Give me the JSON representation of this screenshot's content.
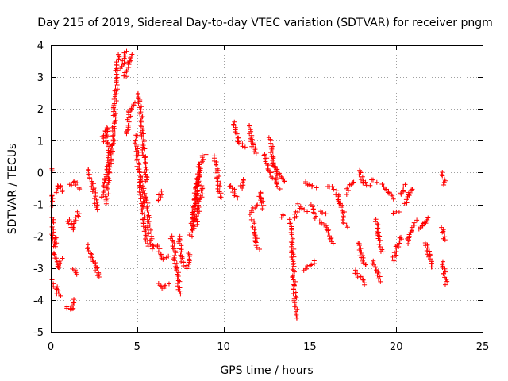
{
  "chart_data": {
    "type": "scatter",
    "title": "Day 215 of 2019, Sidereal Day-to-day VTEC variation (SDTVAR) for receiver pngm",
    "xlabel": "GPS time / hours",
    "ylabel": "SDTVAR / TECUs",
    "xlim": [
      0,
      25
    ],
    "ylim": [
      -5,
      4
    ],
    "xticks": [
      0,
      5,
      10,
      15,
      20,
      25
    ],
    "yticks": [
      -5,
      -4,
      -3,
      -2,
      -1,
      0,
      1,
      2,
      3,
      4
    ],
    "grid": true,
    "marker": "+",
    "color": "#ff0000",
    "series": [
      {
        "name": "SDTVAR",
        "tracks": [
          [
            [
              0.0,
              -0.1
            ],
            [
              0.15,
              0.15
            ]
          ],
          [
            [
              0.0,
              -0.4
            ],
            [
              0.1,
              -1.5
            ],
            [
              0.2,
              -2.3
            ],
            [
              0.3,
              -2.0
            ]
          ],
          [
            [
              0.0,
              -3.4
            ],
            [
              0.3,
              -3.6
            ],
            [
              0.5,
              -3.9
            ]
          ],
          [
            [
              0.2,
              -2.5
            ],
            [
              0.4,
              -3.0
            ],
            [
              0.6,
              -2.7
            ]
          ],
          [
            [
              0.3,
              -0.6
            ],
            [
              0.5,
              -0.4
            ],
            [
              0.7,
              -0.6
            ]
          ],
          [
            [
              0.9,
              -4.2
            ],
            [
              1.2,
              -4.3
            ],
            [
              1.4,
              -4.0
            ]
          ],
          [
            [
              1.0,
              -1.5
            ],
            [
              1.3,
              -1.8
            ],
            [
              1.6,
              -1.2
            ]
          ],
          [
            [
              1.1,
              -0.4
            ],
            [
              1.4,
              -0.3
            ],
            [
              1.6,
              -0.5
            ]
          ],
          [
            [
              1.3,
              -3.0
            ],
            [
              1.5,
              -3.2
            ]
          ],
          [
            [
              2.1,
              -2.3
            ],
            [
              2.5,
              -2.8
            ],
            [
              2.8,
              -3.3
            ]
          ],
          [
            [
              2.2,
              0.1
            ],
            [
              2.5,
              -0.6
            ],
            [
              2.7,
              -1.2
            ]
          ],
          [
            [
              3.0,
              -0.8
            ],
            [
              3.2,
              -0.2
            ],
            [
              3.4,
              0.6
            ]
          ],
          [
            [
              3.0,
              1.0
            ],
            [
              3.2,
              1.4
            ],
            [
              3.4,
              0.6
            ]
          ],
          [
            [
              3.2,
              -1.0
            ],
            [
              3.4,
              0.2
            ],
            [
              3.6,
              1.0
            ],
            [
              3.7,
              2.0
            ],
            [
              3.8,
              3.0
            ],
            [
              3.9,
              3.7
            ]
          ],
          [
            [
              4.1,
              3.3
            ],
            [
              4.3,
              3.8
            ]
          ],
          [
            [
              4.3,
              3.0
            ],
            [
              4.5,
              3.5
            ],
            [
              4.7,
              3.7
            ]
          ],
          [
            [
              4.4,
              1.2
            ],
            [
              4.6,
              2.0
            ],
            [
              4.8,
              2.2
            ]
          ],
          [
            [
              5.0,
              2.5
            ],
            [
              5.2,
              2.0
            ],
            [
              5.4,
              0.5
            ],
            [
              5.5,
              -0.3
            ]
          ],
          [
            [
              4.9,
              1.2
            ],
            [
              5.2,
              -0.5
            ],
            [
              5.4,
              -1.5
            ],
            [
              5.6,
              -2.3
            ]
          ],
          [
            [
              5.2,
              -0.2
            ],
            [
              5.5,
              -0.8
            ],
            [
              5.7,
              -1.8
            ],
            [
              5.9,
              -2.4
            ]
          ],
          [
            [
              6.2,
              -0.9
            ],
            [
              6.4,
              -0.6
            ]
          ],
          [
            [
              6.2,
              -2.3
            ],
            [
              6.5,
              -2.7
            ],
            [
              6.8,
              -2.6
            ]
          ],
          [
            [
              6.2,
              -3.5
            ],
            [
              6.5,
              -3.6
            ],
            [
              6.8,
              -3.5
            ]
          ],
          [
            [
              7.0,
              -2.0
            ],
            [
              7.3,
              -3.0
            ],
            [
              7.5,
              -3.8
            ]
          ],
          [
            [
              7.4,
              -2.0
            ],
            [
              7.6,
              -2.8
            ],
            [
              7.9,
              -3.0
            ],
            [
              8.0,
              -2.5
            ]
          ],
          [
            [
              8.1,
              -2.0
            ],
            [
              8.3,
              -1.0
            ],
            [
              8.5,
              -0.2
            ],
            [
              8.7,
              0.3
            ]
          ],
          [
            [
              8.2,
              -1.8
            ],
            [
              8.4,
              -0.8
            ],
            [
              8.6,
              0.2
            ],
            [
              8.9,
              0.6
            ]
          ],
          [
            [
              8.4,
              -1.6
            ],
            [
              8.8,
              -0.4
            ]
          ],
          [
            [
              9.5,
              0.5
            ],
            [
              9.7,
              -0.2
            ],
            [
              9.8,
              -0.8
            ]
          ],
          [
            [
              10.4,
              -0.4
            ],
            [
              10.6,
              -0.6
            ],
            [
              10.8,
              -0.8
            ]
          ],
          [
            [
              10.6,
              1.6
            ],
            [
              10.9,
              1.0
            ],
            [
              11.2,
              0.8
            ]
          ],
          [
            [
              11.0,
              -0.5
            ],
            [
              11.1,
              -0.2
            ]
          ],
          [
            [
              11.5,
              1.5
            ],
            [
              11.7,
              0.9
            ],
            [
              11.8,
              0.6
            ]
          ],
          [
            [
              11.6,
              -1.3
            ],
            [
              11.9,
              -1.0
            ]
          ],
          [
            [
              11.7,
              -1.5
            ],
            [
              11.9,
              -2.1
            ],
            [
              12.0,
              -2.4
            ]
          ],
          [
            [
              12.1,
              -0.6
            ],
            [
              12.3,
              -1.1
            ]
          ],
          [
            [
              12.4,
              0.6
            ],
            [
              12.6,
              0.2
            ],
            [
              12.8,
              -0.2
            ]
          ],
          [
            [
              12.7,
              1.1
            ],
            [
              12.9,
              0.3
            ],
            [
              13.2,
              -0.5
            ]
          ],
          [
            [
              13.0,
              0.2
            ],
            [
              13.3,
              -0.1
            ],
            [
              13.5,
              -0.3
            ]
          ],
          [
            [
              13.3,
              -1.4
            ],
            [
              13.5,
              -1.3
            ]
          ],
          [
            [
              13.9,
              -1.5
            ],
            [
              14.0,
              -2.5
            ],
            [
              14.1,
              -3.5
            ],
            [
              14.2,
              -4.6
            ]
          ],
          [
            [
              14.1,
              -1.4
            ],
            [
              14.3,
              -1.2
            ]
          ],
          [
            [
              14.3,
              -1.0
            ],
            [
              14.5,
              -1.1
            ],
            [
              14.8,
              -1.2
            ]
          ],
          [
            [
              14.7,
              -0.3
            ],
            [
              15.0,
              -0.4
            ],
            [
              15.3,
              -0.5
            ]
          ],
          [
            [
              14.7,
              -3.1
            ],
            [
              15.0,
              -2.9
            ],
            [
              15.3,
              -2.8
            ]
          ],
          [
            [
              15.1,
              -1.0
            ],
            [
              15.3,
              -1.4
            ]
          ],
          [
            [
              15.6,
              -1.2
            ],
            [
              15.9,
              -1.3
            ]
          ],
          [
            [
              15.6,
              -1.5
            ],
            [
              16.0,
              -1.8
            ],
            [
              16.3,
              -2.2
            ]
          ],
          [
            [
              16.0,
              -0.4
            ],
            [
              16.3,
              -0.5
            ]
          ],
          [
            [
              16.5,
              -0.6
            ],
            [
              16.8,
              -1.0
            ],
            [
              17.0,
              -1.4
            ]
          ],
          [
            [
              16.9,
              -1.5
            ],
            [
              17.1,
              -1.7
            ]
          ],
          [
            [
              17.1,
              -0.7
            ],
            [
              17.3,
              -0.4
            ],
            [
              17.6,
              -0.3
            ]
          ],
          [
            [
              17.6,
              -3.1
            ],
            [
              17.9,
              -3.3
            ],
            [
              18.2,
              -3.5
            ]
          ],
          [
            [
              17.8,
              -2.2
            ],
            [
              18.0,
              -2.7
            ],
            [
              18.3,
              -2.9
            ]
          ],
          [
            [
              17.8,
              0.1
            ],
            [
              18.1,
              -0.3
            ],
            [
              18.4,
              -0.4
            ]
          ],
          [
            [
              18.6,
              -0.2
            ],
            [
              18.8,
              -0.3
            ]
          ],
          [
            [
              18.6,
              -2.8
            ],
            [
              18.9,
              -3.1
            ],
            [
              19.1,
              -3.4
            ]
          ],
          [
            [
              18.8,
              -1.5
            ],
            [
              19.0,
              -2.0
            ],
            [
              19.2,
              -2.5
            ]
          ],
          [
            [
              19.2,
              -0.4
            ],
            [
              19.5,
              -0.6
            ],
            [
              19.8,
              -0.8
            ]
          ],
          [
            [
              19.8,
              -1.3
            ],
            [
              20.1,
              -1.2
            ]
          ],
          [
            [
              19.8,
              -2.8
            ],
            [
              20.1,
              -2.3
            ],
            [
              20.3,
              -2.0
            ]
          ],
          [
            [
              20.3,
              -0.7
            ],
            [
              20.5,
              -0.4
            ]
          ],
          [
            [
              20.5,
              -1.0
            ],
            [
              20.7,
              -0.7
            ],
            [
              20.9,
              -0.5
            ]
          ],
          [
            [
              20.6,
              -2.2
            ],
            [
              20.9,
              -1.8
            ],
            [
              21.1,
              -1.5
            ]
          ],
          [
            [
              21.3,
              -1.8
            ],
            [
              21.6,
              -1.6
            ],
            [
              21.9,
              -1.4
            ]
          ],
          [
            [
              21.7,
              -2.2
            ],
            [
              21.9,
              -2.6
            ],
            [
              22.1,
              -3.0
            ]
          ],
          [
            [
              22.7,
              0.0
            ],
            [
              22.8,
              -0.4
            ]
          ],
          [
            [
              22.7,
              -1.7
            ],
            [
              22.8,
              -2.1
            ]
          ],
          [
            [
              22.7,
              -2.8
            ],
            [
              22.8,
              -3.2
            ],
            [
              22.9,
              -3.5
            ]
          ]
        ]
      }
    ]
  }
}
